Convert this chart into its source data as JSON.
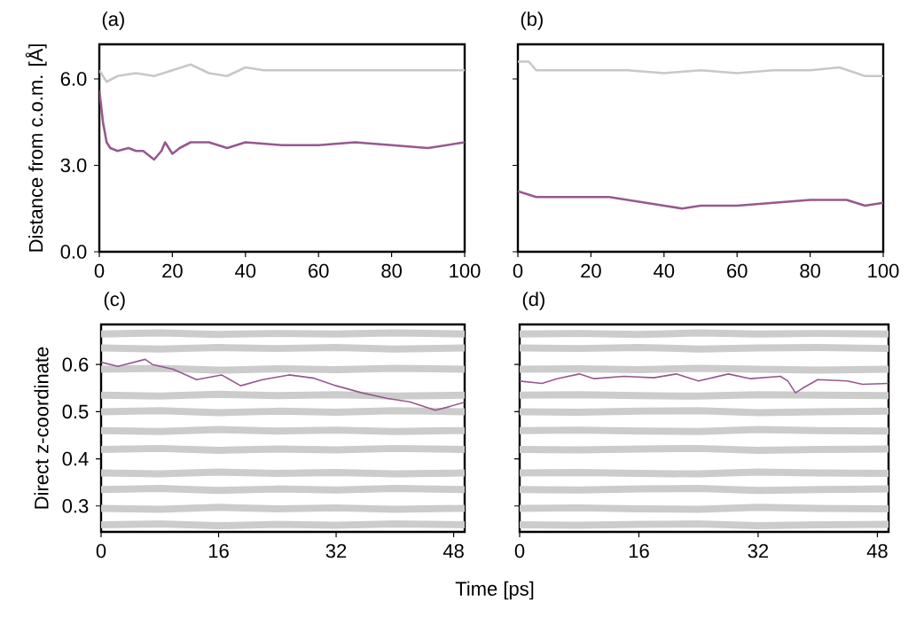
{
  "chart_data": [
    {
      "type": "line",
      "title": "(a)",
      "ylabel": "Distance from c.o.m. [Å]",
      "xlim": [
        0,
        100
      ],
      "ylim": [
        0,
        7.2
      ],
      "xticks": [
        0,
        20,
        40,
        60,
        80,
        100
      ],
      "yticks": [
        {
          "value": 0,
          "label": "0.0"
        },
        {
          "value": 3,
          "label": "3.0"
        },
        {
          "value": 6,
          "label": "6.0"
        }
      ],
      "series": [
        {
          "color": "#c8c8c8",
          "x": [
            0,
            2,
            5,
            10,
            15,
            20,
            25,
            30,
            35,
            40,
            45,
            50,
            60,
            70,
            80,
            90,
            100
          ],
          "values": [
            6.3,
            5.9,
            6.1,
            6.2,
            6.1,
            6.3,
            6.5,
            6.2,
            6.1,
            6.4,
            6.3,
            6.3,
            6.3,
            6.3,
            6.3,
            6.3,
            6.3
          ]
        },
        {
          "color": "#96598e",
          "x": [
            0,
            1,
            2,
            3,
            5,
            8,
            10,
            12,
            15,
            17,
            18,
            20,
            22,
            25,
            30,
            35,
            40,
            50,
            60,
            70,
            80,
            90,
            100
          ],
          "values": [
            5.6,
            4.5,
            3.8,
            3.6,
            3.5,
            3.6,
            3.5,
            3.5,
            3.2,
            3.5,
            3.8,
            3.4,
            3.6,
            3.8,
            3.8,
            3.6,
            3.8,
            3.7,
            3.7,
            3.8,
            3.7,
            3.6,
            3.8
          ]
        }
      ]
    },
    {
      "type": "line",
      "title": "(b)",
      "xlim": [
        0,
        100
      ],
      "ylim": [
        0,
        7.2
      ],
      "xticks": [
        0,
        20,
        40,
        60,
        80,
        100
      ],
      "yticks": [
        0,
        3,
        6
      ],
      "tick_labels": "x",
      "series": [
        {
          "color": "#c8c8c8",
          "x": [
            0,
            3,
            5,
            10,
            20,
            30,
            40,
            50,
            60,
            70,
            80,
            88,
            95,
            100
          ],
          "values": [
            6.6,
            6.6,
            6.3,
            6.3,
            6.3,
            6.3,
            6.2,
            6.3,
            6.2,
            6.3,
            6.3,
            6.4,
            6.1,
            6.1
          ]
        },
        {
          "color": "#96598e",
          "x": [
            0,
            5,
            10,
            20,
            25,
            30,
            40,
            45,
            50,
            60,
            70,
            80,
            90,
            95,
            100
          ],
          "values": [
            2.1,
            1.9,
            1.9,
            1.9,
            1.9,
            1.8,
            1.6,
            1.5,
            1.6,
            1.6,
            1.7,
            1.8,
            1.8,
            1.6,
            1.7
          ]
        }
      ]
    },
    {
      "type": "line",
      "title": "(c)",
      "ylabel": "Direct z-coordinate",
      "xlabel": "Time [ps]",
      "xlim": [
        0,
        49.5
      ],
      "ylim": [
        0.245,
        0.685
      ],
      "xticks": [
        0,
        16,
        32,
        48
      ],
      "yticks": [
        0.3,
        0.4,
        0.5,
        0.6
      ],
      "series": [
        {
          "color": "#cccccc",
          "x": [
            0,
            8,
            16,
            24,
            32,
            40,
            49.5
          ],
          "values": [
            0.665,
            0.667,
            0.664,
            0.666,
            0.665,
            0.667,
            0.665
          ]
        },
        {
          "color": "#cccccc",
          "x": [
            0,
            8,
            16,
            24,
            32,
            40,
            49.5
          ],
          "values": [
            0.635,
            0.633,
            0.636,
            0.634,
            0.636,
            0.633,
            0.635
          ]
        },
        {
          "color": "#cccccc",
          "x": [
            0,
            8,
            16,
            24,
            32,
            40,
            49.5
          ],
          "values": [
            0.59,
            0.592,
            0.588,
            0.591,
            0.589,
            0.592,
            0.59
          ]
        },
        {
          "color": "#cccccc",
          "x": [
            0,
            8,
            16,
            24,
            32,
            40,
            49.5
          ],
          "values": [
            0.535,
            0.533,
            0.537,
            0.534,
            0.536,
            0.533,
            0.535
          ]
        },
        {
          "color": "#cccccc",
          "x": [
            0,
            8,
            16,
            24,
            32,
            40,
            49.5
          ],
          "values": [
            0.5,
            0.502,
            0.498,
            0.501,
            0.499,
            0.502,
            0.5
          ]
        },
        {
          "color": "#cccccc",
          "x": [
            0,
            8,
            16,
            24,
            32,
            40,
            49.5
          ],
          "values": [
            0.46,
            0.458,
            0.462,
            0.459,
            0.461,
            0.458,
            0.46
          ]
        },
        {
          "color": "#cccccc",
          "x": [
            0,
            8,
            16,
            24,
            32,
            40,
            49.5
          ],
          "values": [
            0.42,
            0.422,
            0.418,
            0.421,
            0.419,
            0.422,
            0.42
          ]
        },
        {
          "color": "#cccccc",
          "x": [
            0,
            8,
            16,
            24,
            32,
            40,
            49.5
          ],
          "values": [
            0.37,
            0.368,
            0.372,
            0.369,
            0.371,
            0.368,
            0.37
          ]
        },
        {
          "color": "#cccccc",
          "x": [
            0,
            8,
            16,
            24,
            32,
            40,
            49.5
          ],
          "values": [
            0.335,
            0.337,
            0.333,
            0.336,
            0.334,
            0.337,
            0.335
          ]
        },
        {
          "color": "#cccccc",
          "x": [
            0,
            8,
            16,
            24,
            32,
            40,
            49.5
          ],
          "values": [
            0.295,
            0.293,
            0.297,
            0.294,
            0.296,
            0.293,
            0.295
          ]
        },
        {
          "color": "#cccccc",
          "x": [
            0,
            8,
            16,
            24,
            32,
            40,
            49.5
          ],
          "values": [
            0.26,
            0.262,
            0.258,
            0.261,
            0.259,
            0.262,
            0.26
          ]
        },
        {
          "color": "#96598e",
          "x": [
            0,
            2.3,
            6,
            7,
            9.8,
            13,
            16.4,
            19,
            22,
            25.6,
            29,
            32,
            35.5,
            39,
            42,
            45.5,
            47,
            49.5
          ],
          "values": [
            0.605,
            0.596,
            0.611,
            0.6,
            0.59,
            0.568,
            0.578,
            0.555,
            0.568,
            0.578,
            0.571,
            0.555,
            0.54,
            0.528,
            0.521,
            0.503,
            0.509,
            0.52
          ]
        }
      ]
    },
    {
      "type": "line",
      "title": "(d)",
      "xlim": [
        0,
        49.5
      ],
      "ylim": [
        0.245,
        0.685
      ],
      "xticks": [
        0,
        16,
        32,
        48
      ],
      "yticks": [
        0.3,
        0.4,
        0.5,
        0.6
      ],
      "tick_labels": "x",
      "series": [
        {
          "color": "#cccccc",
          "x": [
            0,
            8,
            16,
            24,
            32,
            40,
            49.5
          ],
          "values": [
            0.665,
            0.666,
            0.664,
            0.667,
            0.665,
            0.666,
            0.665
          ]
        },
        {
          "color": "#cccccc",
          "x": [
            0,
            8,
            16,
            24,
            32,
            40,
            49.5
          ],
          "values": [
            0.635,
            0.634,
            0.636,
            0.633,
            0.635,
            0.636,
            0.634
          ]
        },
        {
          "color": "#cccccc",
          "x": [
            0,
            8,
            16,
            24,
            32,
            40,
            49.5
          ],
          "values": [
            0.59,
            0.591,
            0.589,
            0.592,
            0.59,
            0.588,
            0.59
          ]
        },
        {
          "color": "#cccccc",
          "x": [
            0,
            8,
            16,
            24,
            32,
            40,
            49.5
          ],
          "values": [
            0.535,
            0.536,
            0.534,
            0.533,
            0.536,
            0.535,
            0.534
          ]
        },
        {
          "color": "#cccccc",
          "x": [
            0,
            8,
            16,
            24,
            32,
            40,
            49.5
          ],
          "values": [
            0.5,
            0.499,
            0.501,
            0.502,
            0.498,
            0.5,
            0.501
          ]
        },
        {
          "color": "#cccccc",
          "x": [
            0,
            8,
            16,
            24,
            32,
            40,
            49.5
          ],
          "values": [
            0.46,
            0.461,
            0.459,
            0.458,
            0.462,
            0.46,
            0.459
          ]
        },
        {
          "color": "#cccccc",
          "x": [
            0,
            8,
            16,
            24,
            32,
            40,
            49.5
          ],
          "values": [
            0.42,
            0.419,
            0.421,
            0.422,
            0.418,
            0.42,
            0.421
          ]
        },
        {
          "color": "#cccccc",
          "x": [
            0,
            8,
            16,
            24,
            32,
            40,
            49.5
          ],
          "values": [
            0.37,
            0.371,
            0.369,
            0.368,
            0.372,
            0.37,
            0.369
          ]
        },
        {
          "color": "#cccccc",
          "x": [
            0,
            8,
            16,
            24,
            32,
            40,
            49.5
          ],
          "values": [
            0.335,
            0.334,
            0.336,
            0.337,
            0.333,
            0.335,
            0.336
          ]
        },
        {
          "color": "#cccccc",
          "x": [
            0,
            8,
            16,
            24,
            32,
            40,
            49.5
          ],
          "values": [
            0.295,
            0.296,
            0.294,
            0.293,
            0.297,
            0.295,
            0.294
          ]
        },
        {
          "color": "#cccccc",
          "x": [
            0,
            8,
            16,
            24,
            32,
            40,
            49.5
          ],
          "values": [
            0.26,
            0.259,
            0.261,
            0.262,
            0.258,
            0.26,
            0.261
          ]
        },
        {
          "color": "#96598e",
          "x": [
            0,
            3,
            5,
            8,
            10,
            14,
            18,
            21,
            24,
            28,
            31,
            35,
            36,
            37,
            38,
            40,
            44,
            46,
            49.5
          ],
          "values": [
            0.565,
            0.56,
            0.57,
            0.58,
            0.57,
            0.575,
            0.572,
            0.58,
            0.565,
            0.58,
            0.57,
            0.575,
            0.565,
            0.54,
            0.55,
            0.568,
            0.565,
            0.558,
            0.56
          ]
        }
      ]
    }
  ]
}
